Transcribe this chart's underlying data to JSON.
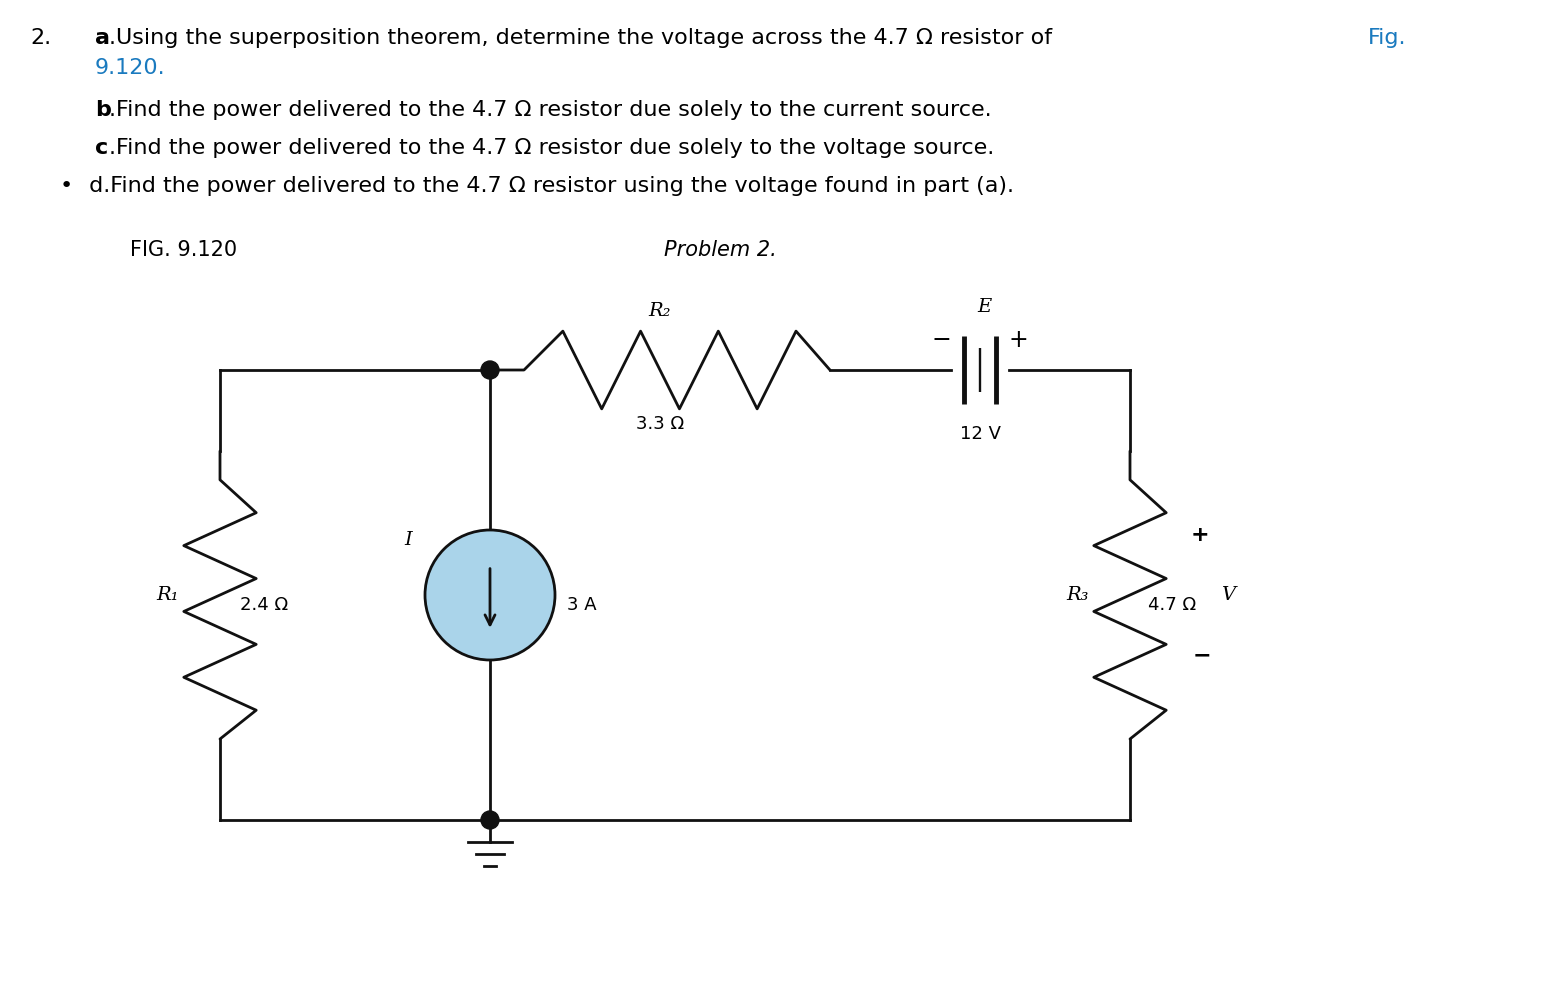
{
  "bg_color": "#ffffff",
  "text_color": "#000000",
  "blue_color": "#1a7abf",
  "fig_label": "FIG. 9.120",
  "problem_label": "Problem 2.",
  "item_number": "2.",
  "R1_label": "R₁",
  "R1_value": "2.4 Ω",
  "R2_label": "R₂",
  "R2_value": "3.3 Ω",
  "R3_label": "R₃",
  "R3_value": "4.7 Ω",
  "E_label": "E",
  "E_value": "12 V",
  "I_label": "I",
  "I_value": "3 A",
  "V_label": "V",
  "circuit_line_color": "#111111",
  "current_source_fill": "#aad4ea",
  "line1_num": "2.",
  "line1_a": "a",
  "line1_rest": ".Using the superposition theorem, determine the voltage across the 4.7 Ω resistor of ",
  "line1_fig": "Fig.",
  "line2_ref": "9.120.",
  "line3_b": "b",
  "line3_rest": ".Find the power delivered to the 4.7 Ω resistor due solely to the current source.",
  "line4_c": "c",
  "line4_rest": ".Find the power delivered to the 4.7 Ω resistor due solely to the voltage source.",
  "line5_bullet": "•",
  "line5_rest": " d.Find the power delivered to the 4.7 Ω resistor using the voltage found in part (a).",
  "font_size_text": 16,
  "font_size_labels": 14,
  "font_size_values": 13
}
